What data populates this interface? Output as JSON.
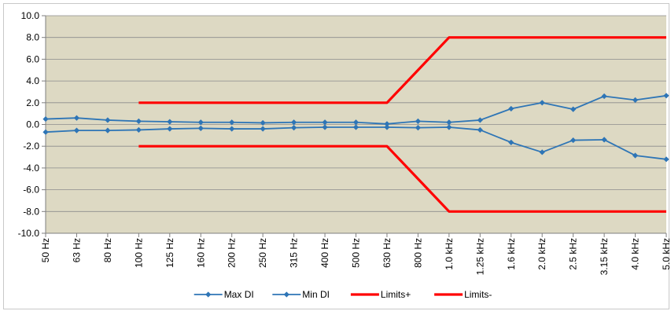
{
  "chart_data": {
    "type": "line",
    "title": "",
    "xlabel": "",
    "ylabel": "",
    "ylim": [
      -10,
      10
    ],
    "ytick_step": 2,
    "grid": true,
    "legend_position": "bottom",
    "plot_background": "#ddd9c3",
    "categories": [
      "50 Hz",
      "63 Hz",
      "80 Hz",
      "100 Hz",
      "125 Hz",
      "160 Hz",
      "200 Hz",
      "250 Hz",
      "315 Hz",
      "400 Hz",
      "500 Hz",
      "630 Hz",
      "800 Hz",
      "1.0 kHz",
      "1.25 kHz",
      "1.6 kHz",
      "2.0 kHz",
      "2.5 kHz",
      "3.15 kHz",
      "4.0 kHz",
      "5.0 kHz"
    ],
    "series": [
      {
        "name": "Max DI",
        "color": "#2e75b6",
        "marker": "diamond",
        "values": [
          0.5,
          0.6,
          0.4,
          0.3,
          0.25,
          0.2,
          0.2,
          0.15,
          0.2,
          0.2,
          0.2,
          0.05,
          0.3,
          0.2,
          0.4,
          1.45,
          2.0,
          1.4,
          2.6,
          2.25,
          2.65
        ]
      },
      {
        "name": "Min DI",
        "color": "#2e75b6",
        "marker": "diamond",
        "values": [
          -0.7,
          -0.55,
          -0.55,
          -0.5,
          -0.4,
          -0.35,
          -0.4,
          -0.4,
          -0.3,
          -0.25,
          -0.25,
          -0.25,
          -0.3,
          -0.25,
          -0.5,
          -1.65,
          -2.55,
          -1.45,
          -1.4,
          -2.85,
          -3.2
        ]
      },
      {
        "name": "Limits+",
        "color": "#ff0000",
        "marker": "none",
        "values": [
          null,
          null,
          null,
          2,
          2,
          2,
          2,
          2,
          2,
          2,
          2,
          2,
          5,
          8,
          8,
          8,
          8,
          8,
          8,
          8,
          8
        ]
      },
      {
        "name": "Limits-",
        "color": "#ff0000",
        "marker": "none",
        "values": [
          null,
          null,
          null,
          -2,
          -2,
          -2,
          -2,
          -2,
          -2,
          -2,
          -2,
          -2,
          -5,
          -8,
          -8,
          -8,
          -8,
          -8,
          -8,
          -8,
          -8
        ]
      }
    ]
  }
}
